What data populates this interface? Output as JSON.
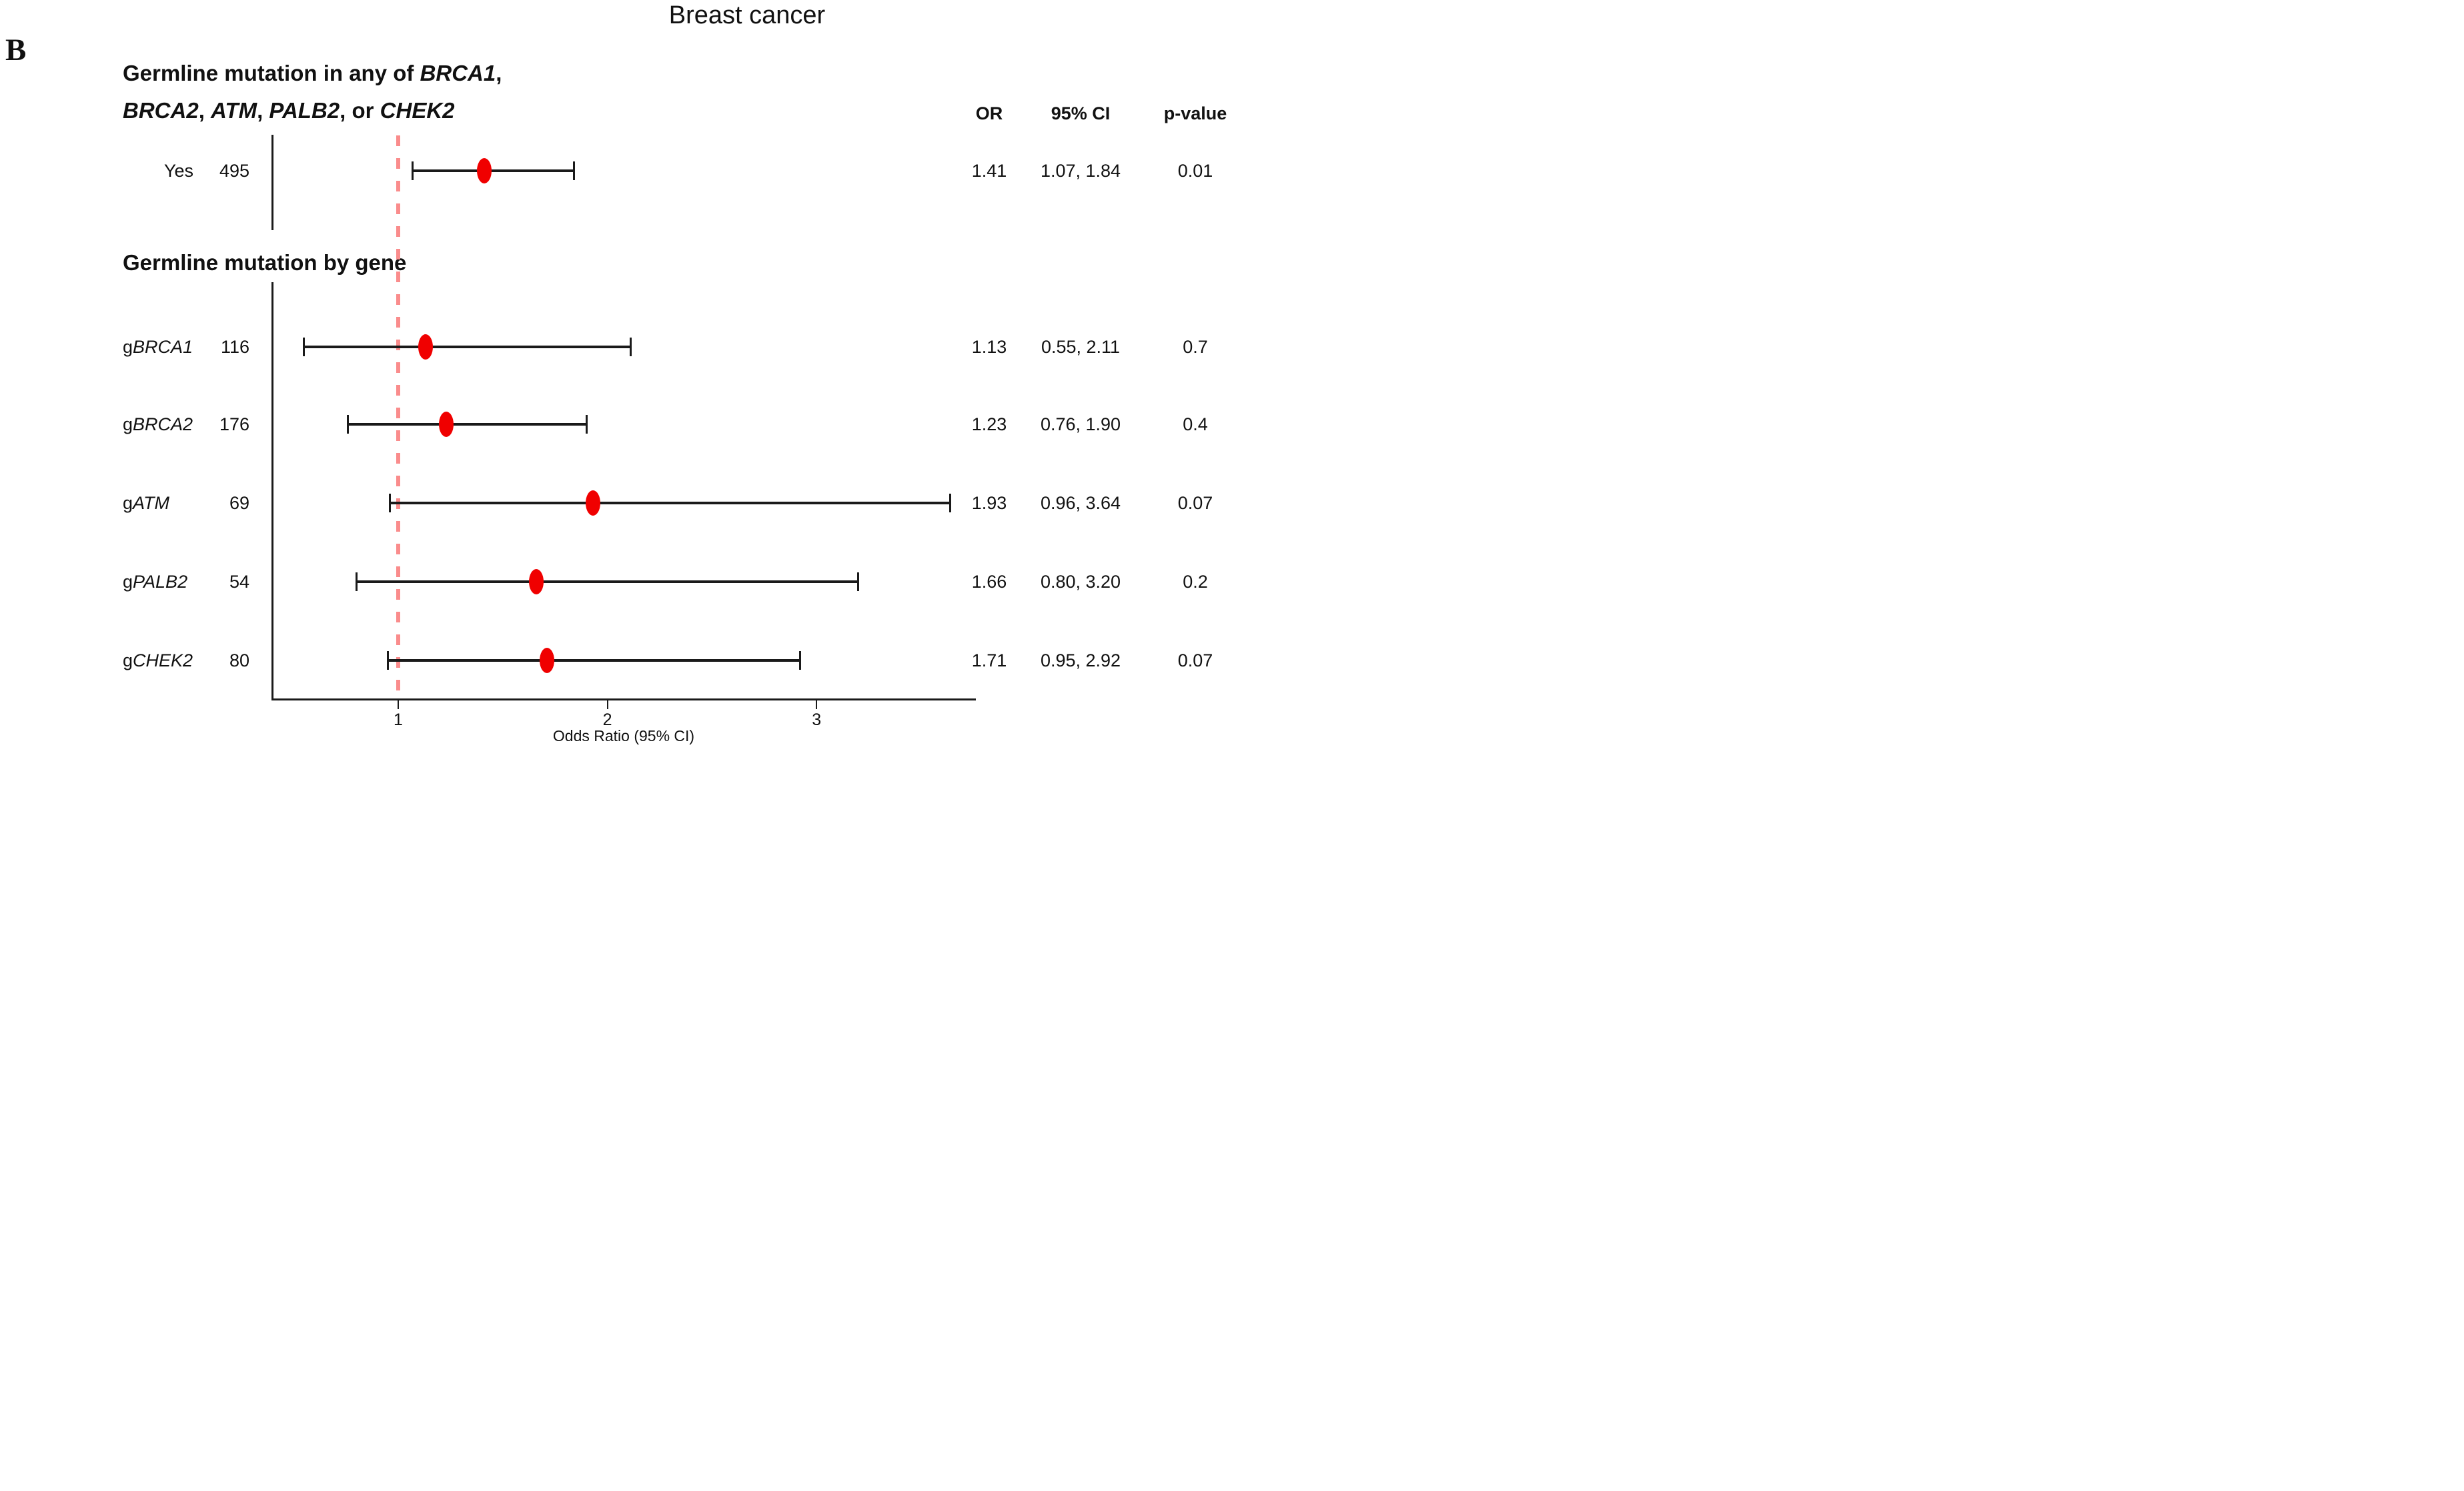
{
  "panel_label": "B",
  "title": "Breast cancer",
  "chart_data": {
    "type": "forest",
    "title": "Breast cancer",
    "xlabel": "Odds Ratio (95% CI)",
    "x_scale": "linear",
    "x_ticks": [
      1,
      2,
      3
    ],
    "xlim": [
      0.4,
      3.77
    ],
    "reference_line_x": 1,
    "grid": false,
    "columns": {
      "or": "OR",
      "ci": "95% CI",
      "p": "p-value"
    },
    "colors": {
      "point_fill": "#f00000",
      "reference_line": "#fa8c8c",
      "ci_line": "#1a1a1a",
      "axis": "#1a1a1a"
    },
    "groups": [
      {
        "heading_line1_parts": [
          {
            "t": "Germline mutation in any of ",
            "i": false
          },
          {
            "t": "BRCA1",
            "i": true
          },
          {
            "t": ",",
            "i": false
          }
        ],
        "heading_line2_parts": [
          {
            "t": "BRCA2",
            "i": true
          },
          {
            "t": ", ",
            "i": false
          },
          {
            "t": "ATM",
            "i": true
          },
          {
            "t": ", ",
            "i": false
          },
          {
            "t": "PALB2",
            "i": true
          },
          {
            "t": ", or ",
            "i": false
          },
          {
            "t": "CHEK2",
            "i": true
          }
        ],
        "rows": [
          {
            "label": "Yes",
            "n_text": "495",
            "or": 1.41,
            "ci_low": 1.07,
            "ci_high": 1.84,
            "or_text": "1.41",
            "ci_text": "1.07, 1.84",
            "p_text": "0.01"
          }
        ]
      },
      {
        "heading": "Germline mutation by gene",
        "rows": [
          {
            "label_prefix": "g",
            "gene": "BRCA1",
            "n_text": "116",
            "or": 1.13,
            "ci_low": 0.55,
            "ci_high": 2.11,
            "or_text": "1.13",
            "ci_text": "0.55, 2.11",
            "p_text": "0.7"
          },
          {
            "label_prefix": "g",
            "gene": "BRCA2",
            "n_text": "176",
            "or": 1.23,
            "ci_low": 0.76,
            "ci_high": 1.9,
            "or_text": "1.23",
            "ci_text": "0.76, 1.90",
            "p_text": "0.4"
          },
          {
            "label_prefix": "g",
            "gene": "ATM",
            "n_text": "69",
            "or": 1.93,
            "ci_low": 0.96,
            "ci_high": 3.64,
            "or_text": "1.93",
            "ci_text": "0.96, 3.64",
            "p_text": "0.07"
          },
          {
            "label_prefix": "g",
            "gene": "PALB2",
            "n_text": "54",
            "or": 1.66,
            "ci_low": 0.8,
            "ci_high": 3.2,
            "or_text": "1.66",
            "ci_text": "0.80, 3.20",
            "p_text": "0.2"
          },
          {
            "label_prefix": "g",
            "gene": "CHEK2",
            "n_text": "80",
            "or": 1.71,
            "ci_low": 0.95,
            "ci_high": 2.92,
            "or_text": "1.71",
            "ci_text": "0.95, 2.92",
            "p_text": "0.07"
          }
        ]
      }
    ]
  }
}
